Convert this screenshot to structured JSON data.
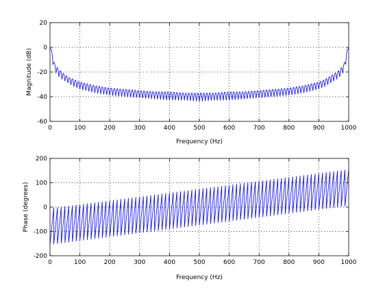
{
  "chart_data": [
    {
      "type": "line",
      "xlabel": "Frequency (Hz)",
      "ylabel": "Magnitude (dB)",
      "xlim": [
        0,
        1000
      ],
      "ylim": [
        -60,
        20
      ],
      "xticks": [
        "0",
        "100",
        "200",
        "300",
        "400",
        "500",
        "600",
        "700",
        "800",
        "900",
        "1000"
      ],
      "yticks": [
        "20",
        "0",
        "-20",
        "-40",
        "-60"
      ],
      "grid": true,
      "series_color": "#0000ff",
      "envelope": {
        "x": [
          0,
          5,
          10,
          15,
          20,
          30,
          40,
          60,
          80,
          100,
          150,
          200,
          250,
          300,
          350,
          400,
          450,
          500,
          550,
          600,
          650,
          700,
          750,
          800,
          850,
          900,
          920,
          940,
          960,
          970,
          980,
          985,
          990,
          995,
          1000
        ],
        "upper": [
          0,
          -2,
          -8,
          -13,
          -15,
          -18,
          -20,
          -24,
          -26,
          -28,
          -31,
          -33,
          -34,
          -35,
          -36,
          -36,
          -37,
          -37,
          -37,
          -36,
          -36,
          -35,
          -34,
          -33,
          -31,
          -28,
          -26,
          -23,
          -20,
          -18,
          -15,
          -13,
          -8,
          -2,
          0
        ],
        "lower": [
          0,
          -6,
          -14,
          -19,
          -21,
          -24,
          -26,
          -29,
          -32,
          -34,
          -37,
          -39,
          -40,
          -41,
          -42,
          -43,
          -43,
          -44,
          -43,
          -43,
          -42,
          -41,
          -40,
          -39,
          -37,
          -34,
          -32,
          -29,
          -26,
          -24,
          -21,
          -19,
          -14,
          -6,
          0
        ]
      },
      "lobe_spacing_hz": 10
    },
    {
      "type": "line",
      "xlabel": "Frequency (Hz)",
      "ylabel": "Phase (degrees)",
      "xlim": [
        0,
        1000
      ],
      "ylim": [
        -200,
        200
      ],
      "xticks": [
        "0",
        "100",
        "200",
        "300",
        "400",
        "500",
        "600",
        "700",
        "800",
        "900",
        "1000"
      ],
      "yticks": [
        "200",
        "100",
        "0",
        "-100",
        "-200"
      ],
      "grid": true,
      "series_color": "#0000ff",
      "sawtooth": {
        "period_hz": 12.5,
        "top_start": -5,
        "top_end": 155,
        "bottom_start": -155,
        "bottom_end": 5
      }
    }
  ]
}
